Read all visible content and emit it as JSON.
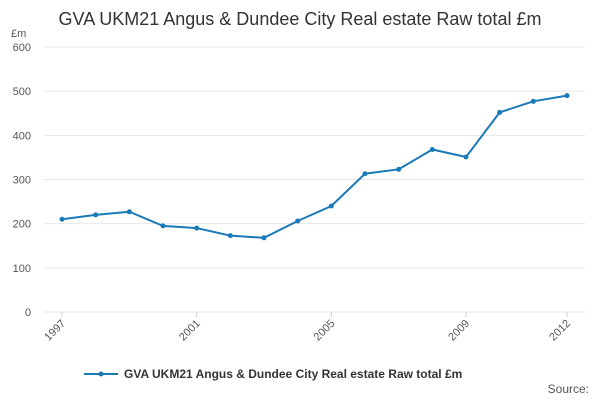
{
  "chart_data": {
    "type": "line",
    "title": "GVA UKM21 Angus & Dundee City Real estate Raw total £m",
    "y_unit": "£m",
    "source": "Source:",
    "x": [
      1997,
      1998,
      1999,
      2000,
      2001,
      2002,
      2003,
      2004,
      2005,
      2006,
      2007,
      2008,
      2009,
      2010,
      2011,
      2012
    ],
    "series": [
      {
        "name": "GVA UKM21 Angus & Dundee City Real estate Raw total £m",
        "color": "#1a7ab8",
        "values": [
          210,
          220,
          227,
          195,
          190,
          173,
          168,
          206,
          240,
          313,
          323,
          368,
          351,
          452,
          477,
          490
        ]
      }
    ],
    "xlim": [
      1997,
      2012
    ],
    "xticks": [
      1997,
      2001,
      2005,
      2009,
      2012
    ],
    "ylim": [
      0,
      600
    ],
    "yticks": [
      0,
      100,
      200,
      300,
      400,
      500,
      600
    ],
    "grid": true
  }
}
